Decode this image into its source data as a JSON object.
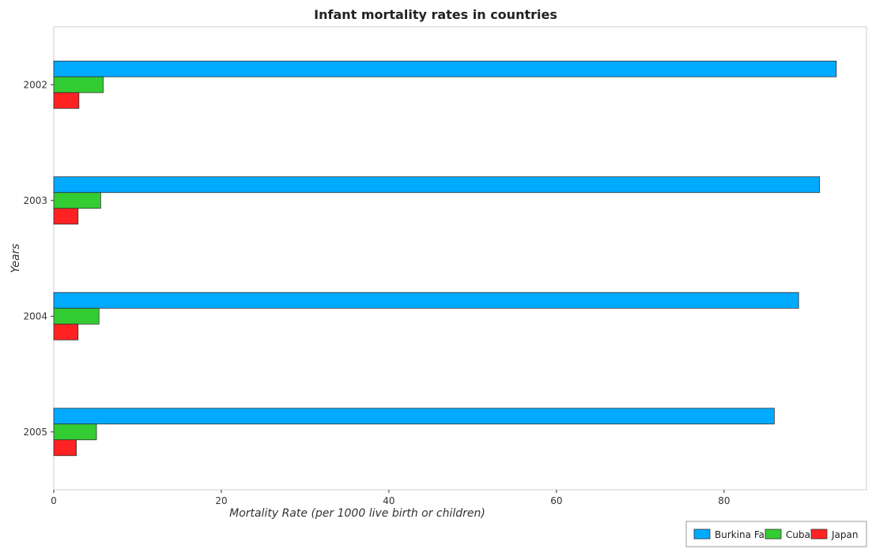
{
  "chart_data": {
    "type": "bar",
    "orientation": "horizontal",
    "title": "Infant mortality rates in countries",
    "xlabel": "Mortality Rate (per 1000 live birth or children)",
    "ylabel": "Years",
    "categories": [
      "2002",
      "2003",
      "2004",
      "2005"
    ],
    "xlim": [
      0,
      97
    ],
    "xticks": [
      0,
      20,
      40,
      60,
      80
    ],
    "grid": false,
    "legend_position": "bottom-right",
    "series": [
      {
        "name": "Burkina Faso",
        "color": "#00aaff",
        "values": [
          93.4,
          91.4,
          88.9,
          86.0
        ]
      },
      {
        "name": "Cuba",
        "color": "#33cc33",
        "values": [
          5.9,
          5.6,
          5.4,
          5.1
        ]
      },
      {
        "name": "Japan",
        "color": "#ff2222",
        "values": [
          3.0,
          2.9,
          2.9,
          2.7
        ]
      }
    ]
  }
}
